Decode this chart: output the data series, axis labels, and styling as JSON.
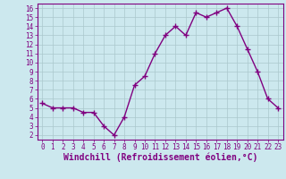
{
  "x": [
    0,
    1,
    2,
    3,
    4,
    5,
    6,
    7,
    8,
    9,
    10,
    11,
    12,
    13,
    14,
    15,
    16,
    17,
    18,
    19,
    20,
    21,
    22,
    23
  ],
  "y": [
    5.5,
    5.0,
    5.0,
    5.0,
    4.5,
    4.5,
    3.0,
    2.0,
    4.0,
    7.5,
    8.5,
    11.0,
    13.0,
    14.0,
    13.0,
    15.5,
    15.0,
    15.5,
    16.0,
    14.0,
    11.5,
    9.0,
    6.0,
    5.0
  ],
  "line_color": "#800080",
  "marker": "+",
  "markersize": 4,
  "linewidth": 1.0,
  "xlabel": "Windchill (Refroidissement éolien,°C)",
  "xlabel_fontsize": 7,
  "ylabel_ticks": [
    2,
    3,
    4,
    5,
    6,
    7,
    8,
    9,
    10,
    11,
    12,
    13,
    14,
    15,
    16
  ],
  "xlim": [
    -0.5,
    23.5
  ],
  "ylim": [
    1.5,
    16.5
  ],
  "bg_color": "#cce8ee",
  "grid_color": "#aac8cc",
  "tick_fontsize": 5.5,
  "spine_color": "#800080",
  "marker_color": "#800080"
}
